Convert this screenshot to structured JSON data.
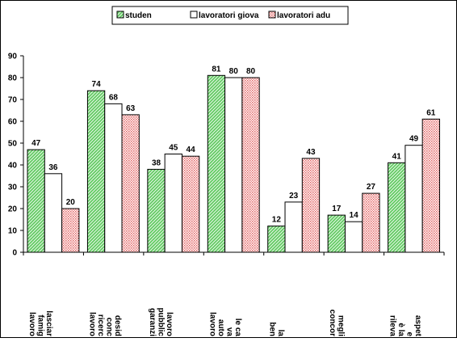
{
  "chart_data": {
    "type": "bar",
    "title": "",
    "xlabel": "",
    "ylabel": "",
    "ylim": [
      0,
      90
    ],
    "yticks": [
      0,
      10,
      20,
      30,
      40,
      50,
      60,
      70,
      80,
      90
    ],
    "grid": false,
    "legend_position": "top",
    "categories": [
      [
        "lavoro",
        "famig",
        "lasciar"
      ],
      [
        "lavoro",
        "ricerc",
        "conc",
        "desid"
      ],
      [
        "garanzi",
        "pubblic",
        "lavoro"
      ],
      [
        "lavoro",
        "auto",
        "va",
        "le ca"
      ],
      [
        "ben",
        "la"
      ],
      [
        "concor",
        "megli"
      ],
      [
        "rileva",
        "è la",
        "e",
        "aspet"
      ]
    ],
    "series": [
      {
        "name": "studen",
        "values": [
          47,
          74,
          38,
          81,
          12,
          17,
          41
        ],
        "color": "#66cc66",
        "pattern": "hatch-green"
      },
      {
        "name": "lavoratori giova",
        "values": [
          36,
          68,
          45,
          80,
          23,
          14,
          49
        ],
        "color": "#ffffff",
        "pattern": "solid"
      },
      {
        "name": "lavoratori adu",
        "values": [
          20,
          63,
          44,
          80,
          43,
          27,
          61
        ],
        "color": "#ff9999",
        "pattern": "dots-red"
      }
    ]
  }
}
